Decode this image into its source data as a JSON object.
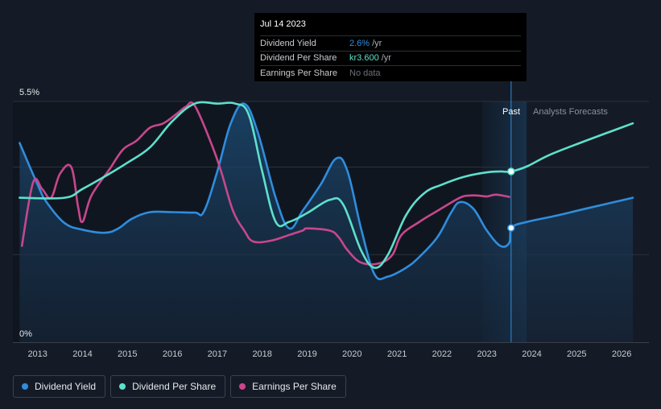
{
  "chart_data": {
    "type": "line",
    "y_axis": {
      "max_label": "5.5%",
      "min_label": "0%",
      "ylim": [
        0,
        5.5
      ]
    },
    "x_ticks": [
      "2013",
      "2014",
      "2015",
      "2016",
      "2017",
      "2018",
      "2019",
      "2020",
      "2021",
      "2022",
      "2023",
      "2024",
      "2025",
      "2026"
    ],
    "x_range": [
      2012.45,
      2026.25
    ],
    "regions": {
      "past_label": "Past",
      "forecast_label": "Analysts Forecasts",
      "divider_x": 2023.54
    },
    "series": [
      {
        "name": "Dividend Yield",
        "color": "#2f8ddd",
        "fill": true,
        "points": [
          [
            2012.6,
            4.55
          ],
          [
            2013.0,
            3.6
          ],
          [
            2013.2,
            3.2
          ],
          [
            2013.6,
            2.72
          ],
          [
            2014.0,
            2.57
          ],
          [
            2014.5,
            2.5
          ],
          [
            2014.8,
            2.6
          ],
          [
            2015.1,
            2.82
          ],
          [
            2015.5,
            2.97
          ],
          [
            2016.0,
            2.97
          ],
          [
            2016.5,
            2.96
          ],
          [
            2016.7,
            2.98
          ],
          [
            2017.0,
            3.9
          ],
          [
            2017.3,
            5.0
          ],
          [
            2017.6,
            5.45
          ],
          [
            2017.9,
            4.8
          ],
          [
            2018.3,
            3.3
          ],
          [
            2018.6,
            2.6
          ],
          [
            2018.9,
            3.0
          ],
          [
            2019.3,
            3.6
          ],
          [
            2019.65,
            4.2
          ],
          [
            2019.9,
            3.9
          ],
          [
            2020.2,
            2.6
          ],
          [
            2020.5,
            1.55
          ],
          [
            2020.8,
            1.5
          ],
          [
            2021.2,
            1.7
          ],
          [
            2021.5,
            1.95
          ],
          [
            2021.9,
            2.4
          ],
          [
            2022.2,
            2.95
          ],
          [
            2022.4,
            3.2
          ],
          [
            2022.7,
            3.05
          ],
          [
            2023.0,
            2.55
          ],
          [
            2023.3,
            2.2
          ],
          [
            2023.5,
            2.27
          ],
          [
            2023.54,
            2.61
          ],
          [
            2023.9,
            2.75
          ],
          [
            2024.5,
            2.88
          ],
          [
            2025.2,
            3.05
          ],
          [
            2026.25,
            3.3
          ]
        ]
      },
      {
        "name": "Dividend Per Share",
        "color": "#5ee0cc",
        "fill": false,
        "points": [
          [
            2012.6,
            3.3
          ],
          [
            2013.6,
            3.3
          ],
          [
            2014.0,
            3.5
          ],
          [
            2014.6,
            3.85
          ],
          [
            2015.0,
            4.1
          ],
          [
            2015.5,
            4.45
          ],
          [
            2016.0,
            5.05
          ],
          [
            2016.5,
            5.45
          ],
          [
            2017.0,
            5.45
          ],
          [
            2017.4,
            5.45
          ],
          [
            2017.7,
            5.2
          ],
          [
            2018.0,
            3.9
          ],
          [
            2018.3,
            2.75
          ],
          [
            2018.6,
            2.75
          ],
          [
            2019.0,
            2.95
          ],
          [
            2019.5,
            3.25
          ],
          [
            2019.8,
            3.15
          ],
          [
            2020.2,
            2.1
          ],
          [
            2020.5,
            1.7
          ],
          [
            2020.8,
            2.0
          ],
          [
            2021.2,
            2.9
          ],
          [
            2021.6,
            3.4
          ],
          [
            2022.0,
            3.6
          ],
          [
            2022.5,
            3.78
          ],
          [
            2023.0,
            3.88
          ],
          [
            2023.3,
            3.9
          ],
          [
            2023.54,
            3.9
          ],
          [
            2023.9,
            4.02
          ],
          [
            2024.4,
            4.28
          ],
          [
            2025.2,
            4.6
          ],
          [
            2026.25,
            5.0
          ]
        ]
      },
      {
        "name": "Earnings Per Share",
        "color": "#c7478b",
        "fill": false,
        "points": [
          [
            2012.65,
            2.2
          ],
          [
            2012.9,
            3.65
          ],
          [
            2013.1,
            3.5
          ],
          [
            2013.3,
            3.3
          ],
          [
            2013.5,
            3.85
          ],
          [
            2013.75,
            4.0
          ],
          [
            2013.9,
            3.1
          ],
          [
            2014.0,
            2.75
          ],
          [
            2014.2,
            3.35
          ],
          [
            2014.6,
            3.95
          ],
          [
            2014.9,
            4.4
          ],
          [
            2015.2,
            4.6
          ],
          [
            2015.5,
            4.9
          ],
          [
            2015.8,
            5.0
          ],
          [
            2016.1,
            5.22
          ],
          [
            2016.3,
            5.38
          ],
          [
            2016.5,
            5.4
          ],
          [
            2016.9,
            4.45
          ],
          [
            2017.1,
            3.85
          ],
          [
            2017.35,
            3.0
          ],
          [
            2017.6,
            2.55
          ],
          [
            2017.8,
            2.3
          ],
          [
            2018.2,
            2.32
          ],
          [
            2018.6,
            2.45
          ],
          [
            2018.9,
            2.55
          ],
          [
            2019.0,
            2.6
          ],
          [
            2019.5,
            2.55
          ],
          [
            2019.7,
            2.4
          ],
          [
            2019.9,
            2.1
          ],
          [
            2020.2,
            1.82
          ],
          [
            2020.6,
            1.8
          ],
          [
            2020.9,
            2.0
          ],
          [
            2021.1,
            2.45
          ],
          [
            2021.5,
            2.75
          ],
          [
            2021.9,
            3.0
          ],
          [
            2022.4,
            3.3
          ],
          [
            2022.6,
            3.35
          ],
          [
            2022.8,
            3.35
          ],
          [
            2023.0,
            3.33
          ],
          [
            2023.2,
            3.37
          ],
          [
            2023.5,
            3.32
          ]
        ]
      }
    ],
    "markers": [
      {
        "series": "Dividend Per Share",
        "x": 2023.54,
        "y": 3.9
      },
      {
        "series": "Dividend Yield",
        "x": 2023.54,
        "y": 2.61
      }
    ]
  },
  "tooltip": {
    "date": "Jul 14 2023",
    "rows": [
      {
        "label": "Dividend Yield",
        "value": "2.6%",
        "unit": "/yr",
        "color": "#2f8ddd"
      },
      {
        "label": "Dividend Per Share",
        "value": "kr3.600",
        "unit": "/yr",
        "color": "#5ee0cc"
      },
      {
        "label": "Earnings Per Share",
        "value": "No data",
        "unit": "",
        "color": "#6b7079"
      }
    ]
  },
  "legend": [
    {
      "label": "Dividend Yield",
      "color": "#2f8ddd"
    },
    {
      "label": "Dividend Per Share",
      "color": "#5ee0cc"
    },
    {
      "label": "Earnings Per Share",
      "color": "#c7478b"
    }
  ]
}
